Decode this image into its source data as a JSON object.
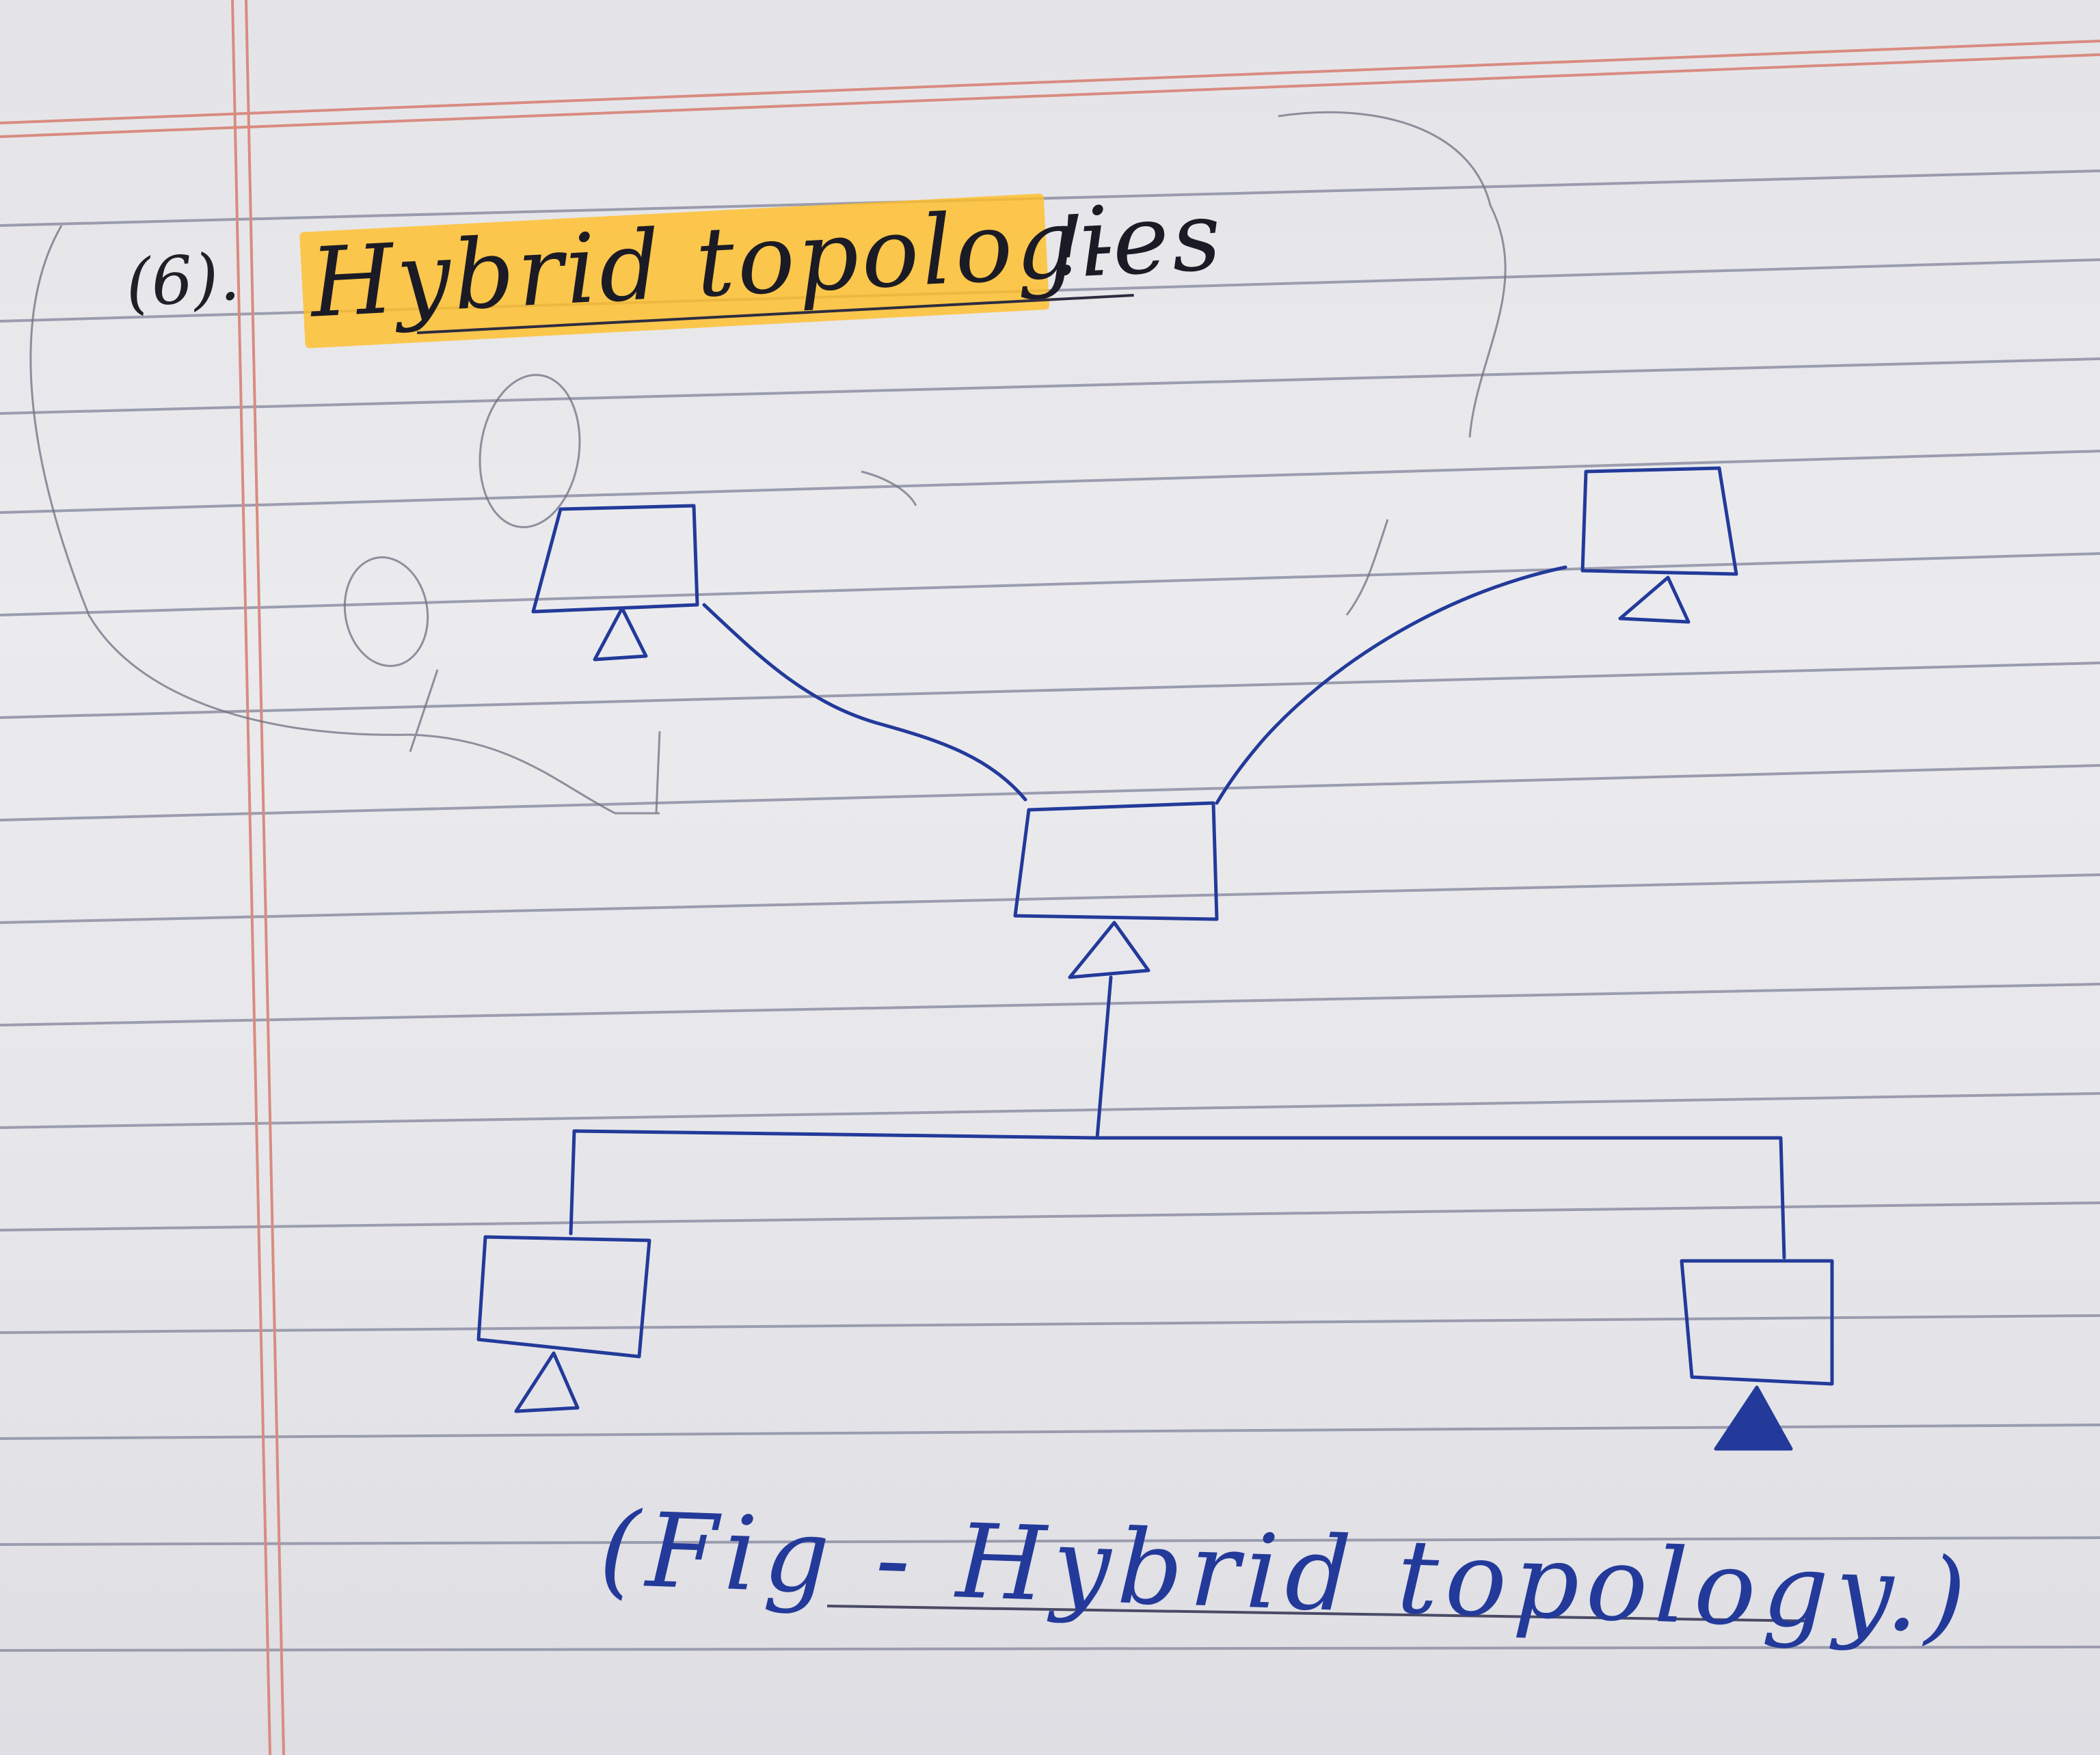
{
  "heading": {
    "number": "(6).",
    "title": "Hybrid topologies",
    "suffix": "!-"
  },
  "figure": {
    "caption": "(Fig - Hybrid topology.)"
  },
  "colors": {
    "ink_blue": "#233a9a",
    "ink_black": "#1b1b26",
    "highlight": "#ffbe28",
    "rule_line": "#8d8fa3",
    "margin_line": "#d9897d"
  },
  "nodes": [
    {
      "id": "top-left",
      "marker": "hollow"
    },
    {
      "id": "top-right",
      "marker": "hollow"
    },
    {
      "id": "center",
      "marker": "hollow"
    },
    {
      "id": "bottom-left",
      "marker": "hollow"
    },
    {
      "id": "bottom-right",
      "marker": "filled"
    }
  ]
}
